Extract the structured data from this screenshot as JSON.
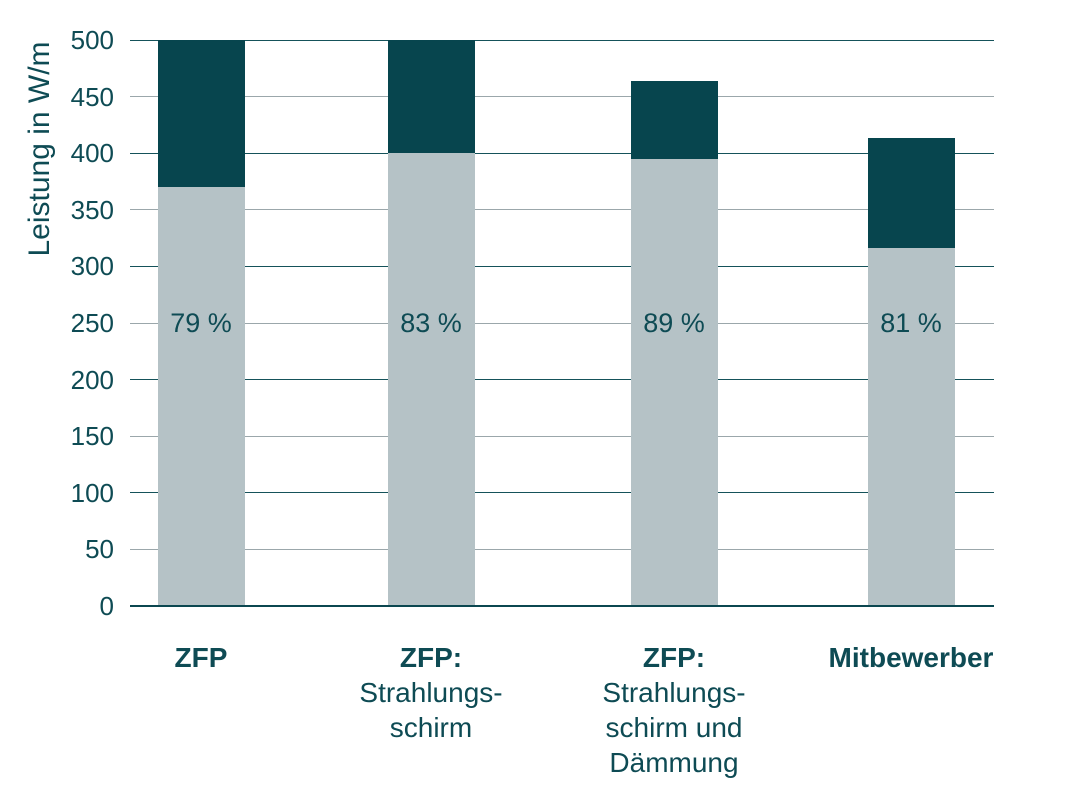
{
  "chart_data": {
    "type": "bar",
    "stacked": true,
    "title": "",
    "ylabel": "Leistung in W/m",
    "xlabel": "",
    "ylim": [
      0,
      500
    ],
    "ytick_step": 50,
    "ytick_labels": [
      "0",
      "50",
      "100",
      "150",
      "200",
      "250",
      "300",
      "350",
      "400",
      "450",
      "500"
    ],
    "grid": "horizontal",
    "legend": "none",
    "categories": [
      [
        "ZFP"
      ],
      [
        "ZFP:",
        "Strahlungs-",
        "schirm"
      ],
      [
        "ZFP:",
        "Strahlungs-",
        "schirm und",
        "Dämmung"
      ],
      [
        "Mitbewerber"
      ]
    ],
    "series": [
      {
        "role": "lower-segment",
        "color": "#b5c2c6",
        "values": [
          370,
          400,
          395,
          316
        ]
      },
      {
        "role": "upper-segment",
        "color": "#07454e",
        "values": [
          130,
          100,
          69,
          97
        ]
      }
    ],
    "totals": [
      500,
      500,
      464,
      413
    ],
    "bar_labels": [
      "79 %",
      "83 %",
      "89 %",
      "81 %"
    ],
    "bar_label_y": 250,
    "colors": {
      "bar_lower": "#b5c2c6",
      "bar_upper": "#07454e",
      "text": "#0e4b54",
      "grid_major": "#15525a",
      "grid_minor": "#9ba7ab",
      "axis_line": "#0b4750",
      "background": "#ffffff"
    }
  }
}
